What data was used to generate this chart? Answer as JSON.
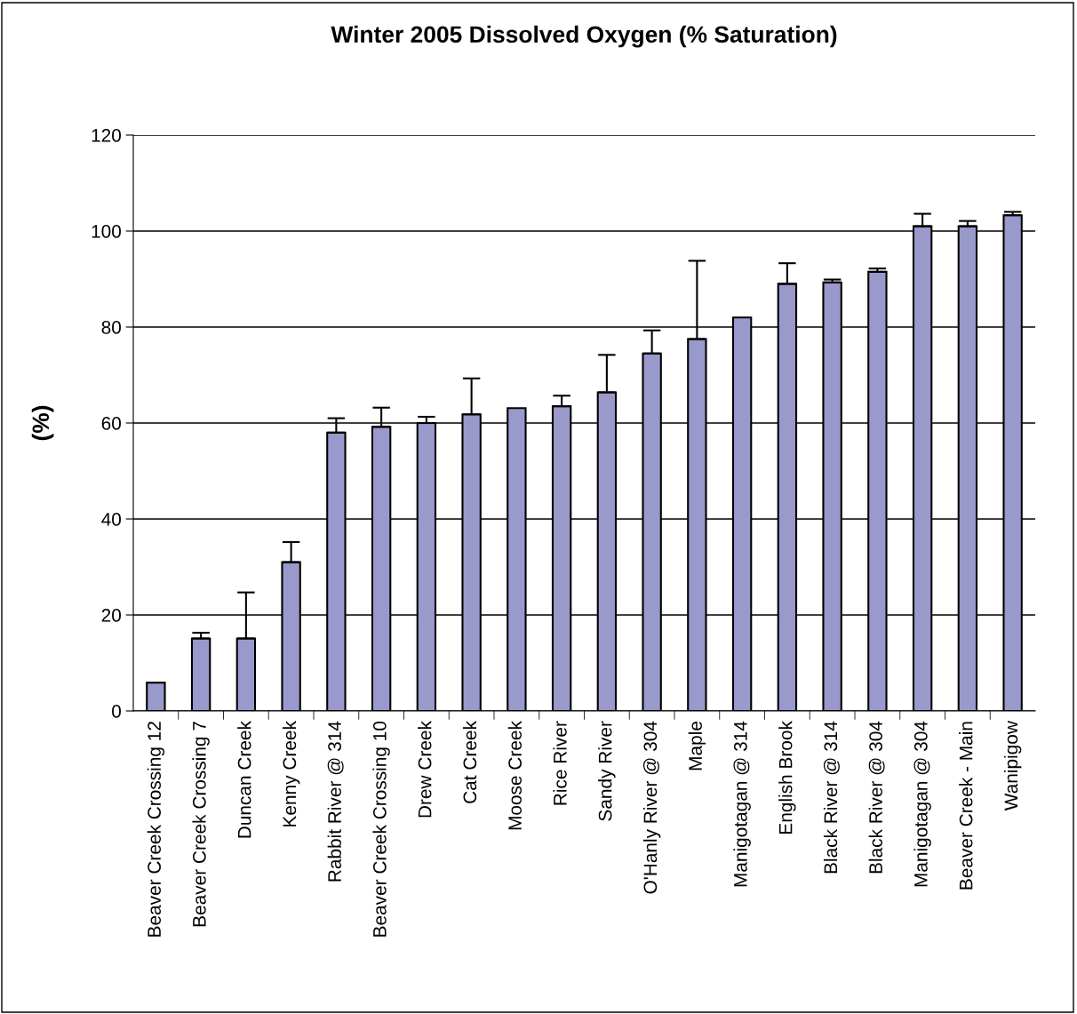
{
  "chart_data": {
    "type": "bar",
    "title": "Winter 2005 Dissolved Oxygen (% Saturation)",
    "ylabel": "(%)",
    "categories": [
      "Beaver Creek Crossing 12",
      "Beaver Creek Crossing 7",
      "Duncan Creek",
      "Kenny Creek",
      "Rabbit River @ 314",
      "Beaver Creek Crossing 10",
      "Drew Creek",
      "Cat Creek",
      "Moose Creek",
      "Rice River",
      "Sandy River",
      "O'Hanly River @ 304",
      "Maple",
      "Manigotagan @ 314",
      "English Brook",
      "Black River @ 314",
      "Black River @ 304",
      "Manigotagan @ 304",
      "Beaver Creek - Main",
      "Wanipigow"
    ],
    "values": [
      5.9,
      15.1,
      15.1,
      31,
      58,
      59.2,
      60,
      61.8,
      63.1,
      63.5,
      66.4,
      74.5,
      77.5,
      82,
      89,
      89.3,
      91.5,
      101,
      101,
      103.3
    ],
    "errors": [
      null,
      [
        15.1,
        16.3
      ],
      [
        15.1,
        24.7
      ],
      [
        31,
        35.2
      ],
      [
        58,
        61
      ],
      [
        59.2,
        63.2
      ],
      [
        60,
        61.3
      ],
      [
        61.8,
        69.3
      ],
      null,
      [
        63.5,
        65.7
      ],
      [
        66.4,
        74.2
      ],
      [
        74.5,
        79.3
      ],
      [
        77.5,
        93.8
      ],
      null,
      [
        89,
        93.3
      ],
      [
        89.3,
        89.9
      ],
      [
        91.5,
        92.2
      ],
      [
        101,
        103.6
      ],
      [
        101,
        102.1
      ],
      [
        103.3,
        104
      ]
    ],
    "color": "#9999cc",
    "ylim": [
      0,
      120
    ],
    "yticks": [
      0,
      20,
      40,
      60,
      80,
      100,
      120
    ],
    "grid": "y",
    "legend": false
  }
}
